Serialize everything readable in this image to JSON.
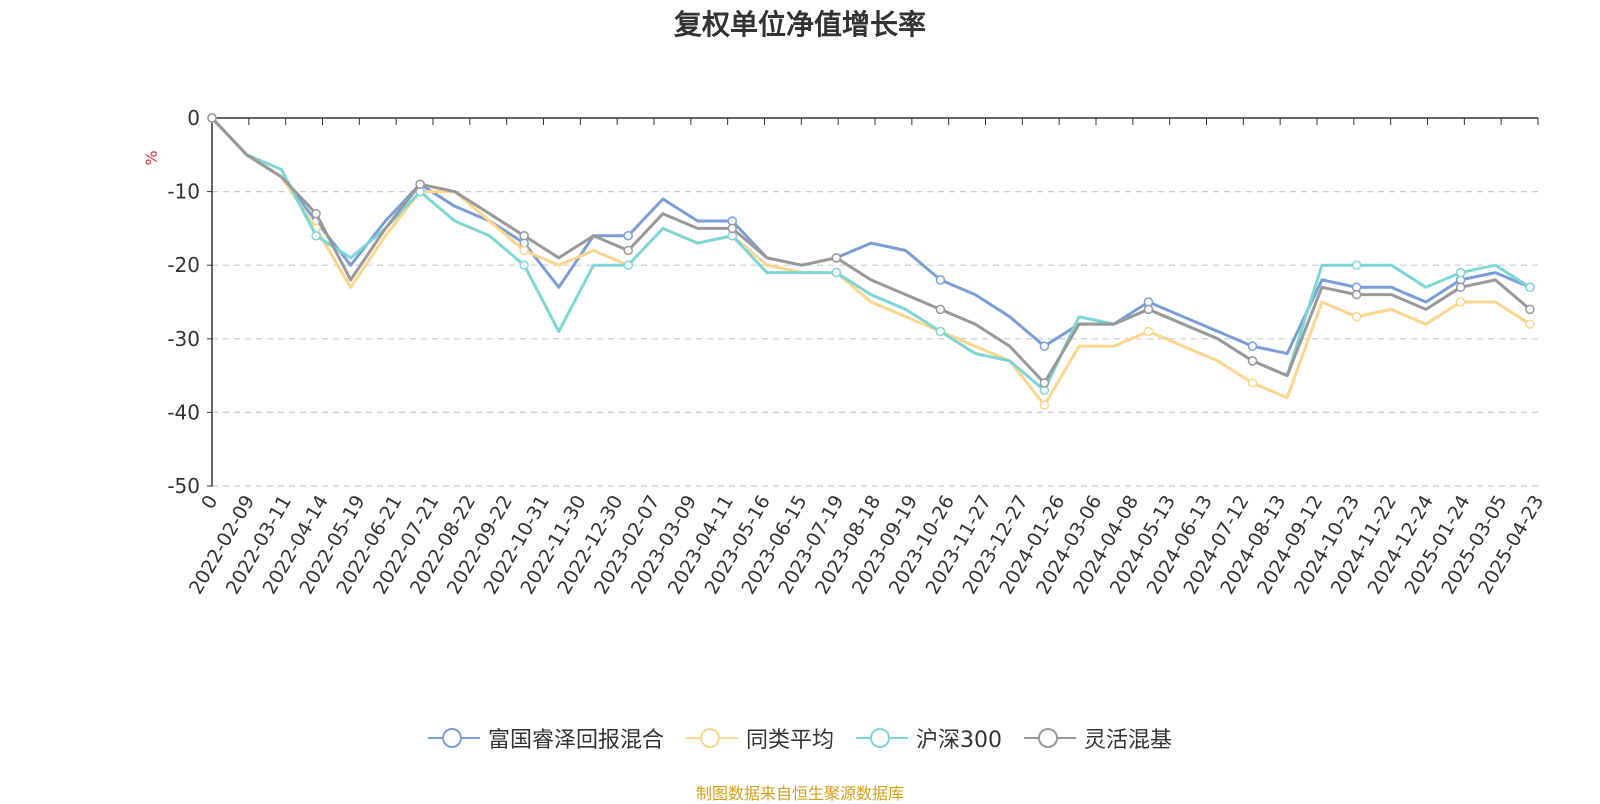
{
  "title": "复权单位净值增长率",
  "source_note": "制图数据来自恒生聚源数据库",
  "colors": {
    "source": "#d4a017",
    "y_unit": "#e03030",
    "axis": "#333333",
    "grid": "#cccccc"
  },
  "chart_data": {
    "type": "line",
    "title": "复权单位净值增长率",
    "ylabel": "%",
    "ylim": [
      -50,
      0
    ],
    "y_ticks": [
      "0",
      "-10",
      "-20",
      "-30",
      "-40",
      "-50"
    ],
    "x_ticks": [
      "0",
      "2022-02-09",
      "2022-03-11",
      "2022-04-14",
      "2022-05-19",
      "2022-06-21",
      "2022-07-21",
      "2022-08-22",
      "2022-09-22",
      "2022-10-31",
      "2022-11-30",
      "2022-12-30",
      "2023-02-07",
      "2023-03-09",
      "2023-04-11",
      "2023-05-16",
      "2023-06-15",
      "2023-07-19",
      "2023-08-18",
      "2023-09-19",
      "2023-10-26",
      "2023-11-27",
      "2023-12-27",
      "2024-01-26",
      "2024-03-06",
      "2024-04-08",
      "2024-05-13",
      "2024-06-13",
      "2024-07-12",
      "2024-08-13",
      "2024-09-12",
      "2024-10-23",
      "2024-11-22",
      "2024-12-24",
      "2025-01-24",
      "2025-03-05",
      "2025-04-23"
    ],
    "grid": true,
    "legend_position": "bottom",
    "series": [
      {
        "name": "富国睿泽回报混合",
        "color": "#7b9ed8",
        "values": [
          0,
          -5,
          -8,
          -14,
          -20,
          -14,
          -9,
          -12,
          -14,
          -17,
          -23,
          -16,
          -16,
          -11,
          -14,
          -14,
          -19,
          -20,
          -19,
          -17,
          -18,
          -22,
          -24,
          -27,
          -31,
          -28,
          -28,
          -25,
          -27,
          -29,
          -31,
          -32,
          -22,
          -23,
          -23,
          -25,
          -22,
          -21,
          -23
        ]
      },
      {
        "name": "同类平均",
        "color": "#fcd68c",
        "values": [
          0,
          -5,
          -8,
          -15,
          -23,
          -16,
          -10,
          -10,
          -14,
          -18,
          -20,
          -18,
          -20,
          -15,
          -17,
          -16,
          -20,
          -21,
          -21,
          -25,
          -27,
          -29,
          -31,
          -33,
          -39,
          -31,
          -31,
          -29,
          -31,
          -33,
          -36,
          -38,
          -25,
          -27,
          -26,
          -28,
          -25,
          -25,
          -28
        ]
      },
      {
        "name": "沪深300",
        "color": "#7fd6d6",
        "values": [
          0,
          -5,
          -7,
          -16,
          -19,
          -15,
          -10,
          -14,
          -16,
          -20,
          -29,
          -20,
          -20,
          -15,
          -17,
          -16,
          -21,
          -21,
          -21,
          -24,
          -26,
          -29,
          -32,
          -33,
          -37,
          -27,
          -28,
          -26,
          -28,
          -30,
          -33,
          -35,
          -20,
          -20,
          -20,
          -23,
          -21,
          -20,
          -23
        ]
      },
      {
        "name": "灵活混基",
        "color": "#999999",
        "values": [
          0,
          -5,
          -8,
          -13,
          -22,
          -15,
          -9,
          -10,
          -13,
          -16,
          -19,
          -16,
          -18,
          -13,
          -15,
          -15,
          -19,
          -20,
          -19,
          -22,
          -24,
          -26,
          -28,
          -31,
          -36,
          -28,
          -28,
          -26,
          -28,
          -30,
          -33,
          -35,
          -23,
          -24,
          -24,
          -26,
          -23,
          -22,
          -26
        ]
      }
    ]
  }
}
